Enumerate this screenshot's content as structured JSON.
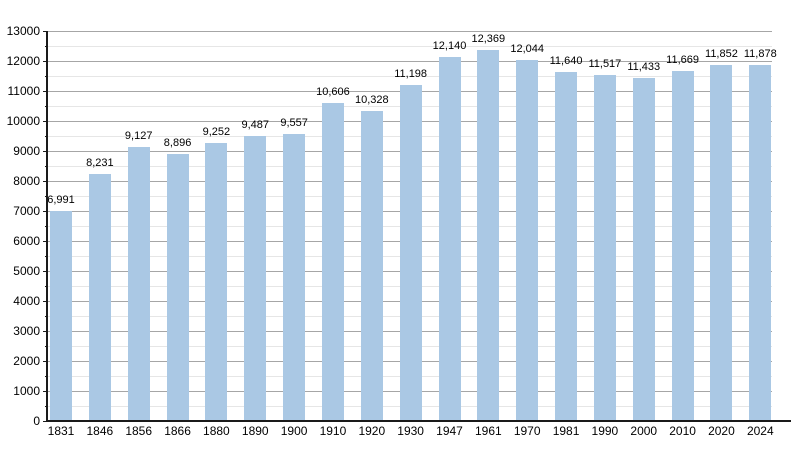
{
  "chart_data": {
    "type": "bar",
    "title": "",
    "xlabel": "",
    "ylabel": "",
    "categories": [
      "1831",
      "1846",
      "1856",
      "1866",
      "1880",
      "1890",
      "1900",
      "1910",
      "1920",
      "1930",
      "1947",
      "1961",
      "1970",
      "1981",
      "1990",
      "2000",
      "2010",
      "2020",
      "2024"
    ],
    "values": [
      6991,
      8231,
      9127,
      8896,
      9252,
      9487,
      9557,
      10606,
      10328,
      11198,
      12140,
      12369,
      12044,
      11640,
      11517,
      11433,
      11669,
      11852,
      11878
    ],
    "value_labels": [
      "6,991",
      "8,231",
      "9,127",
      "8,896",
      "9,252",
      "9,487",
      "9,557",
      "10,606",
      "10,328",
      "11,198",
      "12,140",
      "12,369",
      "12,044",
      "11,640",
      "11,517",
      "11,433",
      "11,669",
      "11,852",
      "11,878"
    ],
    "y_tick_labels": [
      "0",
      "1000",
      "2000",
      "3000",
      "4000",
      "5000",
      "6000",
      "7000",
      "8000",
      "9000",
      "10000",
      "11000",
      "12000",
      "13000"
    ],
    "ylim": [
      0,
      13000
    ],
    "y_major_step": 1000,
    "y_minor_step": 500,
    "grid": "on",
    "legend": "none",
    "colors": {
      "bar_fill": "#aac8e4",
      "major_grid": "#a6a6a6",
      "minor_grid": "#e6e6e6",
      "axis_line": "#1a1a1a",
      "text": "#000000",
      "background": "#ffffff"
    }
  }
}
